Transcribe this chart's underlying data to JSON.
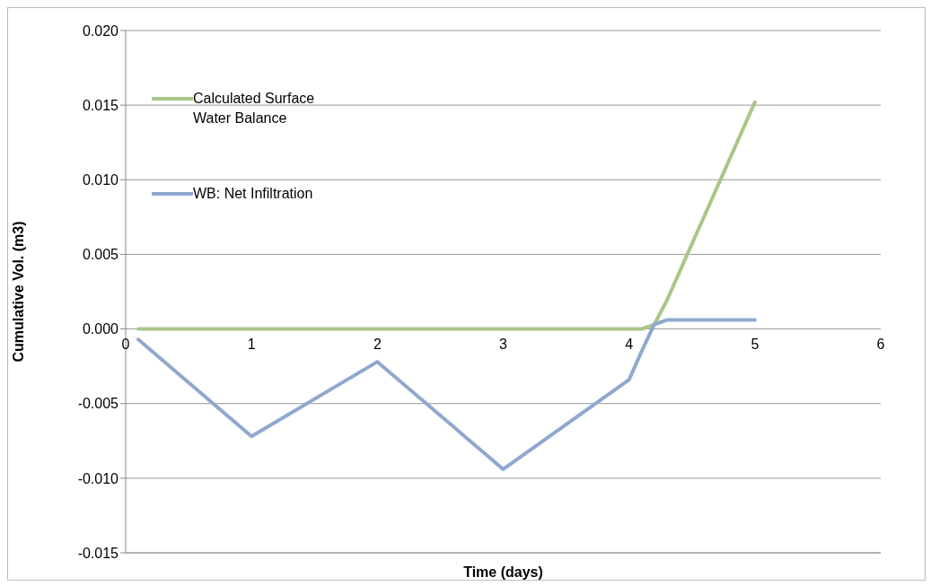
{
  "chart_data": {
    "type": "line",
    "xlabel": "Time (days)",
    "ylabel": "Cumulative Vol. (m3)",
    "xlim": [
      0,
      6
    ],
    "xticks": [
      0,
      1,
      2,
      3,
      4,
      5,
      6
    ],
    "ylim": [
      -0.015,
      0.02
    ],
    "yticks": [
      {
        "value": -0.015,
        "label": "-0.015"
      },
      {
        "value": -0.01,
        "label": "-0.010"
      },
      {
        "value": -0.005,
        "label": "-0.005"
      },
      {
        "value": 0,
        "label": "0.000"
      },
      {
        "value": 0.005,
        "label": "0.005"
      },
      {
        "value": 0.01,
        "label": "0.010"
      },
      {
        "value": 0.015,
        "label": "0.015"
      },
      {
        "value": 0.02,
        "label": "0.020"
      }
    ],
    "grid": "y",
    "legend": "top left",
    "marker": "none",
    "line_style": "solid",
    "series": [
      {
        "name": "Calculated Surface Water Balance",
        "color": "#a9c68a",
        "x": [
          0.1,
          1,
          2,
          3,
          4,
          4.1,
          4.2,
          4.3,
          5
        ],
        "values": [
          0,
          0,
          0,
          0,
          0,
          0,
          0.0003,
          0.0019,
          0.0152
        ]
      },
      {
        "name": "WB: Net Infiltration",
        "color": "#8fa8cf",
        "x": [
          0.1,
          1,
          2,
          3,
          4,
          4.1,
          4.2,
          4.3,
          5
        ],
        "values": [
          -0.0007,
          -0.0072,
          -0.0022,
          -0.0094,
          -0.0034,
          -0.0015,
          0.0003,
          0.0006,
          0.0006
        ]
      }
    ]
  }
}
